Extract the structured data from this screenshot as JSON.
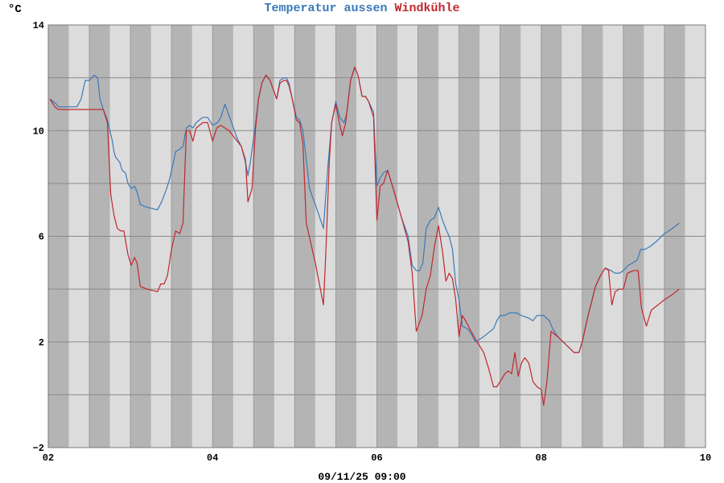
{
  "chart_data": {
    "type": "line",
    "title_parts": [
      {
        "text": "Temperatur aussen",
        "color": "#3a7ab8"
      },
      {
        "text": "Windkühle",
        "color": "#c0282e"
      }
    ],
    "ylabel": "°C",
    "xlabel": "09/11/25 09:00",
    "xlim": [
      2,
      10
    ],
    "ylim": [
      -2,
      14
    ],
    "x_ticks": [
      2,
      4,
      6,
      8,
      10
    ],
    "x_tick_labels": [
      "02",
      "04",
      "06",
      "08",
      "10"
    ],
    "y_ticks": [
      -2,
      2,
      6,
      10,
      14
    ],
    "y_tick_labels": [
      "−2",
      "2",
      "6",
      "10",
      "14"
    ],
    "grid": true,
    "series": [
      {
        "name": "Temperatur aussen",
        "color": "#3a7ab8",
        "points": [
          [
            2.02,
            11.2
          ],
          [
            2.1,
            11.0
          ],
          [
            2.12,
            10.9
          ],
          [
            2.35,
            10.9
          ],
          [
            2.4,
            11.2
          ],
          [
            2.45,
            11.9
          ],
          [
            2.5,
            11.9
          ],
          [
            2.53,
            12.0
          ],
          [
            2.56,
            12.1
          ],
          [
            2.6,
            12.0
          ],
          [
            2.63,
            11.2
          ],
          [
            2.67,
            10.8
          ],
          [
            2.72,
            10.4
          ],
          [
            2.78,
            9.6
          ],
          [
            2.8,
            9.2
          ],
          [
            2.82,
            9.0
          ],
          [
            2.87,
            8.8
          ],
          [
            2.9,
            8.5
          ],
          [
            2.94,
            8.4
          ],
          [
            2.97,
            8.0
          ],
          [
            3.01,
            7.8
          ],
          [
            3.05,
            7.9
          ],
          [
            3.08,
            7.7
          ],
          [
            3.12,
            7.2
          ],
          [
            3.2,
            7.1
          ],
          [
            3.33,
            7.0
          ],
          [
            3.38,
            7.3
          ],
          [
            3.44,
            7.8
          ],
          [
            3.48,
            8.2
          ],
          [
            3.53,
            8.9
          ],
          [
            3.55,
            9.2
          ],
          [
            3.6,
            9.3
          ],
          [
            3.64,
            9.4
          ],
          [
            3.68,
            10.1
          ],
          [
            3.72,
            10.2
          ],
          [
            3.76,
            10.1
          ],
          [
            3.8,
            10.3
          ],
          [
            3.88,
            10.5
          ],
          [
            3.94,
            10.5
          ],
          [
            4.0,
            10.2
          ],
          [
            4.06,
            10.3
          ],
          [
            4.1,
            10.5
          ],
          [
            4.15,
            11.0
          ],
          [
            4.22,
            10.4
          ],
          [
            4.3,
            9.7
          ],
          [
            4.35,
            9.4
          ],
          [
            4.4,
            8.8
          ],
          [
            4.43,
            8.3
          ],
          [
            4.46,
            8.8
          ],
          [
            4.52,
            10.2
          ],
          [
            4.56,
            11.2
          ],
          [
            4.6,
            11.8
          ],
          [
            4.65,
            12.1
          ],
          [
            4.7,
            11.9
          ],
          [
            4.78,
            11.2
          ],
          [
            4.82,
            11.9
          ],
          [
            4.87,
            12.0
          ],
          [
            4.9,
            12.0
          ],
          [
            4.93,
            11.8
          ],
          [
            4.97,
            11.2
          ],
          [
            5.02,
            10.5
          ],
          [
            5.06,
            10.4
          ],
          [
            5.1,
            10.0
          ],
          [
            5.18,
            7.8
          ],
          [
            5.25,
            7.2
          ],
          [
            5.35,
            6.3
          ],
          [
            5.4,
            8.5
          ],
          [
            5.45,
            10.3
          ],
          [
            5.5,
            11.1
          ],
          [
            5.55,
            10.5
          ],
          [
            5.6,
            10.3
          ],
          [
            5.63,
            10.6
          ],
          [
            5.68,
            11.9
          ],
          [
            5.73,
            12.4
          ],
          [
            5.77,
            12.1
          ],
          [
            5.82,
            11.3
          ],
          [
            5.86,
            11.3
          ],
          [
            5.9,
            11.1
          ],
          [
            5.96,
            10.7
          ],
          [
            6.0,
            7.9
          ],
          [
            6.04,
            8.2
          ],
          [
            6.08,
            8.4
          ],
          [
            6.13,
            8.5
          ],
          [
            6.2,
            7.8
          ],
          [
            6.3,
            6.7
          ],
          [
            6.38,
            6.0
          ],
          [
            6.43,
            4.9
          ],
          [
            6.48,
            4.7
          ],
          [
            6.52,
            4.7
          ],
          [
            6.56,
            5.0
          ],
          [
            6.6,
            6.3
          ],
          [
            6.65,
            6.6
          ],
          [
            6.7,
            6.7
          ],
          [
            6.75,
            7.1
          ],
          [
            6.8,
            6.6
          ],
          [
            6.85,
            6.2
          ],
          [
            6.88,
            6.0
          ],
          [
            6.92,
            5.5
          ],
          [
            6.96,
            4.2
          ],
          [
            7.0,
            3.6
          ],
          [
            7.04,
            2.6
          ],
          [
            7.1,
            2.5
          ],
          [
            7.15,
            2.3
          ],
          [
            7.2,
            2.0
          ],
          [
            7.3,
            2.2
          ],
          [
            7.42,
            2.5
          ],
          [
            7.46,
            2.8
          ],
          [
            7.5,
            3.0
          ],
          [
            7.55,
            3.0
          ],
          [
            7.62,
            3.1
          ],
          [
            7.7,
            3.1
          ],
          [
            7.76,
            3.0
          ],
          [
            7.85,
            2.9
          ],
          [
            7.9,
            2.8
          ],
          [
            7.95,
            3.0
          ],
          [
            8.03,
            3.0
          ],
          [
            8.1,
            2.8
          ],
          [
            8.14,
            2.5
          ],
          [
            8.2,
            2.2
          ],
          [
            8.3,
            1.9
          ],
          [
            8.4,
            1.6
          ],
          [
            8.46,
            1.6
          ],
          [
            8.5,
            2.0
          ],
          [
            8.57,
            3.0
          ],
          [
            8.62,
            3.6
          ],
          [
            8.66,
            4.1
          ],
          [
            8.72,
            4.5
          ],
          [
            8.78,
            4.8
          ],
          [
            8.85,
            4.7
          ],
          [
            8.9,
            4.6
          ],
          [
            8.95,
            4.6
          ],
          [
            9.0,
            4.7
          ],
          [
            9.06,
            4.9
          ],
          [
            9.12,
            5.0
          ],
          [
            9.17,
            5.1
          ],
          [
            9.21,
            5.5
          ],
          [
            9.26,
            5.5
          ],
          [
            9.32,
            5.6
          ],
          [
            9.4,
            5.8
          ],
          [
            9.5,
            6.1
          ],
          [
            9.6,
            6.3
          ],
          [
            9.68,
            6.5
          ]
        ]
      },
      {
        "name": "Windkühle",
        "color": "#c0282e",
        "points": [
          [
            2.02,
            11.2
          ],
          [
            2.08,
            10.9
          ],
          [
            2.12,
            10.8
          ],
          [
            2.35,
            10.8
          ],
          [
            2.45,
            10.8
          ],
          [
            2.67,
            10.8
          ],
          [
            2.72,
            10.3
          ],
          [
            2.76,
            7.6
          ],
          [
            2.8,
            6.8
          ],
          [
            2.84,
            6.3
          ],
          [
            2.88,
            6.2
          ],
          [
            2.92,
            6.2
          ],
          [
            2.97,
            5.3
          ],
          [
            3.01,
            4.9
          ],
          [
            3.05,
            5.2
          ],
          [
            3.08,
            5.0
          ],
          [
            3.12,
            4.1
          ],
          [
            3.2,
            4.0
          ],
          [
            3.33,
            3.9
          ],
          [
            3.37,
            4.2
          ],
          [
            3.41,
            4.2
          ],
          [
            3.45,
            4.5
          ],
          [
            3.5,
            5.5
          ],
          [
            3.55,
            6.2
          ],
          [
            3.6,
            6.1
          ],
          [
            3.64,
            6.5
          ],
          [
            3.68,
            10.0
          ],
          [
            3.72,
            10.0
          ],
          [
            3.76,
            9.6
          ],
          [
            3.8,
            10.1
          ],
          [
            3.88,
            10.3
          ],
          [
            3.94,
            10.3
          ],
          [
            4.0,
            9.6
          ],
          [
            4.05,
            10.1
          ],
          [
            4.1,
            10.2
          ],
          [
            4.2,
            10.0
          ],
          [
            4.35,
            9.4
          ],
          [
            4.4,
            8.9
          ],
          [
            4.43,
            7.3
          ],
          [
            4.48,
            7.8
          ],
          [
            4.52,
            10.0
          ],
          [
            4.56,
            11.2
          ],
          [
            4.6,
            11.8
          ],
          [
            4.65,
            12.1
          ],
          [
            4.7,
            11.9
          ],
          [
            4.78,
            11.2
          ],
          [
            4.82,
            11.8
          ],
          [
            4.87,
            11.9
          ],
          [
            4.9,
            11.9
          ],
          [
            4.93,
            11.7
          ],
          [
            4.97,
            11.2
          ],
          [
            5.02,
            10.4
          ],
          [
            5.06,
            10.3
          ],
          [
            5.1,
            9.5
          ],
          [
            5.14,
            6.5
          ],
          [
            5.25,
            5.0
          ],
          [
            5.35,
            3.4
          ],
          [
            5.38,
            5.5
          ],
          [
            5.42,
            8.8
          ],
          [
            5.45,
            10.3
          ],
          [
            5.5,
            11.0
          ],
          [
            5.55,
            10.2
          ],
          [
            5.58,
            9.8
          ],
          [
            5.62,
            10.3
          ],
          [
            5.68,
            11.9
          ],
          [
            5.73,
            12.4
          ],
          [
            5.77,
            12.1
          ],
          [
            5.82,
            11.3
          ],
          [
            5.86,
            11.3
          ],
          [
            5.9,
            11.1
          ],
          [
            5.96,
            10.5
          ],
          [
            6.0,
            6.6
          ],
          [
            6.04,
            7.9
          ],
          [
            6.08,
            8.0
          ],
          [
            6.13,
            8.5
          ],
          [
            6.2,
            7.8
          ],
          [
            6.3,
            6.7
          ],
          [
            6.38,
            5.8
          ],
          [
            6.43,
            4.6
          ],
          [
            6.48,
            2.4
          ],
          [
            6.55,
            3.0
          ],
          [
            6.6,
            4.0
          ],
          [
            6.65,
            4.5
          ],
          [
            6.7,
            5.6
          ],
          [
            6.75,
            6.4
          ],
          [
            6.8,
            5.4
          ],
          [
            6.84,
            4.3
          ],
          [
            6.88,
            4.6
          ],
          [
            6.92,
            4.4
          ],
          [
            6.96,
            3.6
          ],
          [
            7.0,
            2.2
          ],
          [
            7.04,
            3.0
          ],
          [
            7.08,
            2.8
          ],
          [
            7.13,
            2.5
          ],
          [
            7.2,
            2.1
          ],
          [
            7.3,
            1.6
          ],
          [
            7.36,
            1.0
          ],
          [
            7.42,
            0.3
          ],
          [
            7.46,
            0.3
          ],
          [
            7.5,
            0.5
          ],
          [
            7.56,
            0.8
          ],
          [
            7.6,
            0.9
          ],
          [
            7.64,
            0.8
          ],
          [
            7.68,
            1.6
          ],
          [
            7.72,
            0.7
          ],
          [
            7.76,
            1.2
          ],
          [
            7.8,
            1.4
          ],
          [
            7.85,
            1.2
          ],
          [
            7.9,
            0.5
          ],
          [
            7.95,
            0.3
          ],
          [
            8.0,
            0.2
          ],
          [
            8.03,
            -0.4
          ],
          [
            8.07,
            0.5
          ],
          [
            8.12,
            2.4
          ],
          [
            8.2,
            2.2
          ],
          [
            8.3,
            1.9
          ],
          [
            8.4,
            1.6
          ],
          [
            8.46,
            1.6
          ],
          [
            8.5,
            2.0
          ],
          [
            8.57,
            3.0
          ],
          [
            8.62,
            3.6
          ],
          [
            8.66,
            4.1
          ],
          [
            8.72,
            4.5
          ],
          [
            8.78,
            4.8
          ],
          [
            8.82,
            4.7
          ],
          [
            8.86,
            3.4
          ],
          [
            8.9,
            3.9
          ],
          [
            8.95,
            4.0
          ],
          [
            9.0,
            4.0
          ],
          [
            9.05,
            4.6
          ],
          [
            9.12,
            4.7
          ],
          [
            9.18,
            4.7
          ],
          [
            9.22,
            3.3
          ],
          [
            9.28,
            2.6
          ],
          [
            9.34,
            3.2
          ],
          [
            9.5,
            3.6
          ],
          [
            9.6,
            3.8
          ],
          [
            9.68,
            4.0
          ]
        ]
      }
    ]
  }
}
